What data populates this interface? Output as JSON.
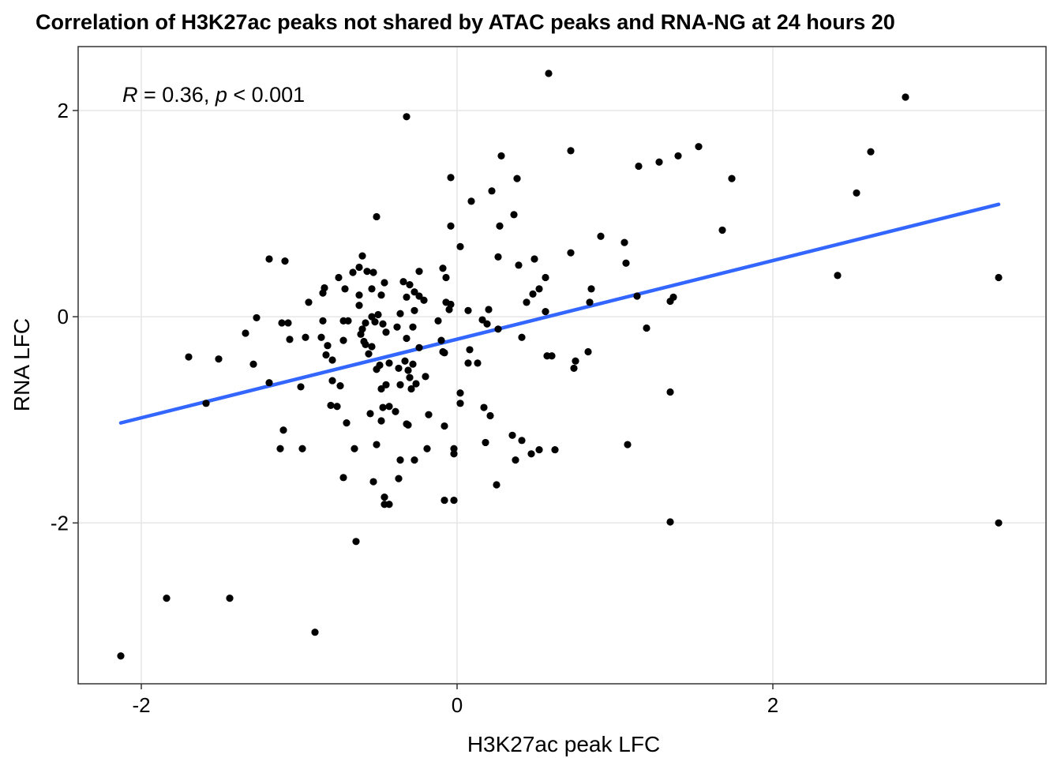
{
  "chart_data": {
    "type": "scatter",
    "title": "Correlation of H3K27ac peaks not shared by ATAC peaks and RNA-NG  at 24 hours 20",
    "xlabel": "H3K27ac peak LFC",
    "ylabel": "RNA LFC",
    "xlim": [
      -2.4,
      3.73
    ],
    "ylim": [
      -3.56,
      2.62
    ],
    "x_ticks": [
      -2,
      0,
      2
    ],
    "y_ticks": [
      -2,
      0,
      2
    ],
    "x_tick_labels": [
      "-2",
      "0",
      "2"
    ],
    "y_tick_labels": [
      "-2",
      "0",
      "2"
    ],
    "grid": true,
    "annotation": {
      "r_symbol": "R",
      "r_text": " = 0.36, ",
      "p_symbol": "p",
      "p_text": " < 0.001"
    },
    "fit_line": {
      "color": "#3366FF",
      "x": [
        -2.13,
        3.43
      ],
      "y": [
        -1.03,
        1.09
      ]
    },
    "points_color": "#000000",
    "points": [
      [
        0.58,
        2.36
      ],
      [
        2.84,
        2.13
      ],
      [
        -0.32,
        1.94
      ],
      [
        1.53,
        1.65
      ],
      [
        2.62,
        1.6
      ],
      [
        0.72,
        1.61
      ],
      [
        0.28,
        1.56
      ],
      [
        1.4,
        1.56
      ],
      [
        1.28,
        1.5
      ],
      [
        1.15,
        1.46
      ],
      [
        1.74,
        1.34
      ],
      [
        -0.04,
        1.35
      ],
      [
        0.38,
        1.34
      ],
      [
        0.22,
        1.22
      ],
      [
        2.53,
        1.2
      ],
      [
        0.09,
        1.12
      ],
      [
        0.36,
        0.99
      ],
      [
        -0.51,
        0.97
      ],
      [
        0.27,
        0.88
      ],
      [
        -0.04,
        0.88
      ],
      [
        1.68,
        0.84
      ],
      [
        0.91,
        0.78
      ],
      [
        1.06,
        0.72
      ],
      [
        0.02,
        0.68
      ],
      [
        0.72,
        0.62
      ],
      [
        -0.6,
        0.59
      ],
      [
        0.26,
        0.58
      ],
      [
        -1.19,
        0.56
      ],
      [
        -1.09,
        0.54
      ],
      [
        0.49,
        0.56
      ],
      [
        1.07,
        0.52
      ],
      [
        0.39,
        0.5
      ],
      [
        -0.62,
        0.48
      ],
      [
        -0.09,
        0.47
      ],
      [
        -0.57,
        0.44
      ],
      [
        -0.66,
        0.43
      ],
      [
        -0.53,
        0.43
      ],
      [
        -0.24,
        0.44
      ],
      [
        -0.75,
        0.38
      ],
      [
        -0.07,
        0.38
      ],
      [
        0.56,
        0.38
      ],
      [
        2.41,
        0.4
      ],
      [
        3.43,
        0.38
      ],
      [
        -0.34,
        0.34
      ],
      [
        -0.3,
        0.31
      ],
      [
        -0.46,
        0.33
      ],
      [
        -0.54,
        0.27
      ],
      [
        -0.84,
        0.28
      ],
      [
        -0.71,
        0.27
      ],
      [
        -0.27,
        0.24
      ],
      [
        -0.24,
        0.2
      ],
      [
        0.52,
        0.27
      ],
      [
        0.85,
        0.27
      ],
      [
        0.48,
        0.22
      ],
      [
        -0.85,
        0.23
      ],
      [
        -0.62,
        0.21
      ],
      [
        -0.48,
        0.21
      ],
      [
        -0.32,
        0.19
      ],
      [
        1.14,
        0.2
      ],
      [
        1.37,
        0.19
      ],
      [
        -0.21,
        0.16
      ],
      [
        -0.94,
        0.14
      ],
      [
        -0.07,
        0.14
      ],
      [
        0.44,
        0.14
      ],
      [
        0.84,
        0.14
      ],
      [
        1.35,
        0.15
      ],
      [
        -0.04,
        0.12
      ],
      [
        -0.62,
        0.11
      ],
      [
        -0.05,
        0.07
      ],
      [
        0.2,
        0.07
      ],
      [
        0.56,
        0.05
      ],
      [
        0.07,
        0.06
      ],
      [
        -0.27,
        0.06
      ],
      [
        -0.5,
        0.02
      ],
      [
        -1.27,
        -0.01
      ],
      [
        -0.36,
        0.03
      ],
      [
        -0.69,
        -0.04
      ],
      [
        -0.72,
        -0.04
      ],
      [
        -0.54,
        0.0
      ],
      [
        -0.58,
        -0.06
      ],
      [
        -0.85,
        -0.04
      ],
      [
        -1.11,
        -0.06
      ],
      [
        -1.07,
        -0.06
      ],
      [
        -0.52,
        -0.05
      ],
      [
        -0.47,
        -0.07
      ],
      [
        -0.12,
        -0.04
      ],
      [
        0.16,
        -0.03
      ],
      [
        0.19,
        -0.07
      ],
      [
        -0.38,
        -0.1
      ],
      [
        -0.6,
        -0.12
      ],
      [
        -0.28,
        -0.1
      ],
      [
        0.26,
        -0.12
      ],
      [
        1.2,
        -0.11
      ],
      [
        -1.34,
        -0.16
      ],
      [
        -0.45,
        -0.15
      ],
      [
        -0.61,
        -0.17
      ],
      [
        0.41,
        -0.2
      ],
      [
        -0.96,
        -0.2
      ],
      [
        -0.86,
        -0.2
      ],
      [
        -0.32,
        -0.21
      ],
      [
        -1.06,
        -0.22
      ],
      [
        -0.59,
        -0.24
      ],
      [
        -0.58,
        -0.27
      ],
      [
        -0.1,
        -0.23
      ],
      [
        -0.72,
        -0.23
      ],
      [
        -0.82,
        -0.28
      ],
      [
        -0.54,
        -0.29
      ],
      [
        -0.24,
        -0.3
      ],
      [
        -0.09,
        -0.34
      ],
      [
        0.08,
        -0.32
      ],
      [
        0.83,
        -0.34
      ],
      [
        -0.08,
        -0.35
      ],
      [
        -0.83,
        -0.37
      ],
      [
        -0.56,
        -0.36
      ],
      [
        -1.7,
        -0.39
      ],
      [
        -1.51,
        -0.41
      ],
      [
        0.57,
        -0.38
      ],
      [
        0.6,
        -0.38
      ],
      [
        -0.79,
        -0.42
      ],
      [
        -0.33,
        -0.43
      ],
      [
        0.13,
        -0.45
      ],
      [
        0.07,
        -0.45
      ],
      [
        0.75,
        -0.43
      ],
      [
        -1.29,
        -0.46
      ],
      [
        -0.49,
        -0.47
      ],
      [
        -0.28,
        -0.46
      ],
      [
        -0.43,
        -0.45
      ],
      [
        -0.37,
        -0.5
      ],
      [
        -0.51,
        -0.51
      ],
      [
        0.74,
        -0.5
      ],
      [
        -0.31,
        -0.52
      ],
      [
        -0.3,
        -0.59
      ],
      [
        -0.2,
        -0.58
      ],
      [
        -0.79,
        -0.62
      ],
      [
        -1.19,
        -0.64
      ],
      [
        -0.45,
        -0.66
      ],
      [
        -0.36,
        -0.66
      ],
      [
        -0.26,
        -0.65
      ],
      [
        -0.74,
        -0.67
      ],
      [
        -0.99,
        -0.68
      ],
      [
        -0.48,
        -0.7
      ],
      [
        -0.29,
        -0.7
      ],
      [
        1.35,
        -0.73
      ],
      [
        0.02,
        -0.74
      ],
      [
        -1.59,
        -0.84
      ],
      [
        -0.8,
        -0.86
      ],
      [
        -0.76,
        -0.87
      ],
      [
        -0.43,
        -0.87
      ],
      [
        0.02,
        -0.84
      ],
      [
        0.17,
        -0.88
      ],
      [
        -0.47,
        -0.88
      ],
      [
        -0.39,
        -0.92
      ],
      [
        -0.55,
        -0.94
      ],
      [
        0.21,
        -0.96
      ],
      [
        -0.18,
        -0.95
      ],
      [
        -0.7,
        -1.03
      ],
      [
        -0.48,
        -1.01
      ],
      [
        -0.32,
        -1.04
      ],
      [
        -0.31,
        -1.05
      ],
      [
        -0.08,
        -1.06
      ],
      [
        -1.1,
        -1.1
      ],
      [
        0.35,
        -1.15
      ],
      [
        0.41,
        -1.2
      ],
      [
        0.18,
        -1.22
      ],
      [
        -0.51,
        -1.24
      ],
      [
        1.08,
        -1.24
      ],
      [
        -1.12,
        -1.28
      ],
      [
        -0.98,
        -1.28
      ],
      [
        -0.65,
        -1.28
      ],
      [
        -0.19,
        -1.28
      ],
      [
        -0.02,
        -1.28
      ],
      [
        0.62,
        -1.29
      ],
      [
        0.52,
        -1.29
      ],
      [
        0.47,
        -1.33
      ],
      [
        -0.02,
        -1.33
      ],
      [
        -0.36,
        -1.39
      ],
      [
        -0.27,
        -1.39
      ],
      [
        0.37,
        -1.39
      ],
      [
        -0.72,
        -1.56
      ],
      [
        -0.37,
        -1.57
      ],
      [
        -0.53,
        -1.6
      ],
      [
        0.25,
        -1.63
      ],
      [
        -0.46,
        -1.75
      ],
      [
        -0.46,
        -1.82
      ],
      [
        -0.43,
        -1.82
      ],
      [
        -0.08,
        -1.78
      ],
      [
        -0.02,
        -1.78
      ],
      [
        1.35,
        -1.99
      ],
      [
        3.43,
        -2.0
      ],
      [
        -0.64,
        -2.18
      ],
      [
        -1.84,
        -2.73
      ],
      [
        -1.44,
        -2.73
      ],
      [
        -0.9,
        -3.06
      ],
      [
        -2.13,
        -3.29
      ]
    ]
  }
}
